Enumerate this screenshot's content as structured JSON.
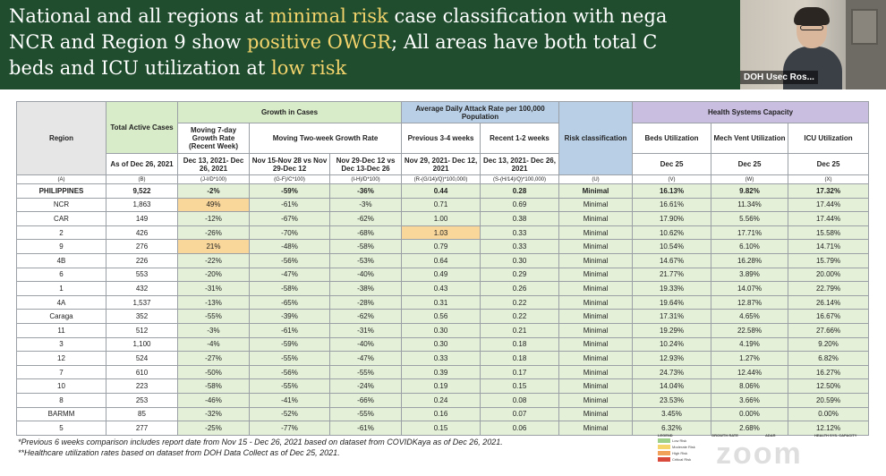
{
  "slide": {
    "title_lines": [
      [
        {
          "t": "National and all regions at ",
          "hl": false
        },
        {
          "t": "minimal risk",
          "hl": true
        },
        {
          "t": " case classification with nega",
          "hl": false
        }
      ],
      [
        {
          "t": "NCR and Region 9 show ",
          "hl": false
        },
        {
          "t": "positive OWGR",
          "hl": true
        },
        {
          "t": "; All areas have both total C",
          "hl": false
        }
      ],
      [
        {
          "t": "beds and ICU utilization at ",
          "hl": false
        },
        {
          "t": "low risk",
          "hl": true
        }
      ]
    ],
    "highlight_color": "#f3d36b",
    "background_color": "#1f4d2e"
  },
  "video": {
    "participant_name": "DOH Usec Ros..."
  },
  "table": {
    "headers": {
      "region": "Region",
      "total_active": "Total Active Cases",
      "growth_in_cases": "Growth in Cases",
      "adar": "Average Daily Attack Rate per 100,000 Population",
      "risk": "Risk classification",
      "hsc": "Health Systems Capacity",
      "moving7": "Moving 7-day Growth Rate (Recent Week)",
      "moving2wk": "Moving Two-week Growth Rate",
      "previous": "Previous 3-4 weeks",
      "recent": "Recent 1-2 weeks",
      "beds": "Beds Utilization",
      "mech": "Mech Vent Utilization",
      "icu": "ICU Utilization",
      "asof": "As of Dec 26, 2021",
      "d7": "Dec 13, 2021- Dec 26, 2021",
      "nov15": "Nov 15-Nov 28 vs Nov 29-Dec 12",
      "nov29": "Nov 29-Dec 12 vs Dec 13-Dec 26",
      "prev_dates": "Nov 29, 2021- Dec 12, 2021",
      "rec_dates": "Dec 13, 2021- Dec 26, 2021",
      "dec25a": "Dec 25",
      "dec25b": "Dec 25",
      "dec25c": "Dec 25"
    },
    "letters": [
      "(A)",
      "(B)",
      "(J-I/D*100)",
      "(G-F)/C*100)",
      "(I-H)/D*100)",
      "(R-(G/14)/Q)*100,000)",
      "(S-(H/14)/Q)*100,000)",
      "(U)",
      "(V)",
      "(W)",
      "(X)"
    ],
    "rows": [
      {
        "region": "PHILIPPINES",
        "active": "9,522",
        "g7": "-2%",
        "g2a": "-59%",
        "g2b": "-36%",
        "prev": "0.44",
        "rec": "0.28",
        "risk": "Minimal",
        "beds": "16.13%",
        "mech": "9.82%",
        "icu": "17.32%",
        "bold": true
      },
      {
        "region": "NCR",
        "active": "1,863",
        "g7": "49%",
        "g2a": "-61%",
        "g2b": "-3%",
        "prev": "0.71",
        "rec": "0.69",
        "risk": "Minimal",
        "beds": "16.61%",
        "mech": "11.34%",
        "icu": "17.44%",
        "g7_flag": true
      },
      {
        "region": "CAR",
        "active": "149",
        "g7": "-12%",
        "g2a": "-67%",
        "g2b": "-62%",
        "prev": "1.00",
        "rec": "0.38",
        "risk": "Minimal",
        "beds": "17.90%",
        "mech": "5.56%",
        "icu": "17.44%"
      },
      {
        "region": "2",
        "active": "426",
        "g7": "-26%",
        "g2a": "-70%",
        "g2b": "-68%",
        "prev": "1.03",
        "rec": "0.33",
        "risk": "Minimal",
        "beds": "10.62%",
        "mech": "17.71%",
        "icu": "15.58%",
        "prev_flag": true
      },
      {
        "region": "9",
        "active": "276",
        "g7": "21%",
        "g2a": "-48%",
        "g2b": "-58%",
        "prev": "0.79",
        "rec": "0.33",
        "risk": "Minimal",
        "beds": "10.54%",
        "mech": "6.10%",
        "icu": "14.71%",
        "g7_flag": true
      },
      {
        "region": "4B",
        "active": "226",
        "g7": "-22%",
        "g2a": "-56%",
        "g2b": "-53%",
        "prev": "0.64",
        "rec": "0.30",
        "risk": "Minimal",
        "beds": "14.67%",
        "mech": "16.28%",
        "icu": "15.79%"
      },
      {
        "region": "6",
        "active": "553",
        "g7": "-20%",
        "g2a": "-47%",
        "g2b": "-40%",
        "prev": "0.49",
        "rec": "0.29",
        "risk": "Minimal",
        "beds": "21.77%",
        "mech": "3.89%",
        "icu": "20.00%"
      },
      {
        "region": "1",
        "active": "432",
        "g7": "-31%",
        "g2a": "-58%",
        "g2b": "-38%",
        "prev": "0.43",
        "rec": "0.26",
        "risk": "Minimal",
        "beds": "19.33%",
        "mech": "14.07%",
        "icu": "22.79%"
      },
      {
        "region": "4A",
        "active": "1,537",
        "g7": "-13%",
        "g2a": "-65%",
        "g2b": "-28%",
        "prev": "0.31",
        "rec": "0.22",
        "risk": "Minimal",
        "beds": "19.64%",
        "mech": "12.87%",
        "icu": "26.14%"
      },
      {
        "region": "Caraga",
        "active": "352",
        "g7": "-55%",
        "g2a": "-39%",
        "g2b": "-62%",
        "prev": "0.56",
        "rec": "0.22",
        "risk": "Minimal",
        "beds": "17.31%",
        "mech": "4.65%",
        "icu": "16.67%"
      },
      {
        "region": "11",
        "active": "512",
        "g7": "-3%",
        "g2a": "-61%",
        "g2b": "-31%",
        "prev": "0.30",
        "rec": "0.21",
        "risk": "Minimal",
        "beds": "19.29%",
        "mech": "22.58%",
        "icu": "27.66%"
      },
      {
        "region": "3",
        "active": "1,100",
        "g7": "-4%",
        "g2a": "-59%",
        "g2b": "-40%",
        "prev": "0.30",
        "rec": "0.18",
        "risk": "Minimal",
        "beds": "10.24%",
        "mech": "4.19%",
        "icu": "9.20%"
      },
      {
        "region": "12",
        "active": "524",
        "g7": "-27%",
        "g2a": "-55%",
        "g2b": "-47%",
        "prev": "0.33",
        "rec": "0.18",
        "risk": "Minimal",
        "beds": "12.93%",
        "mech": "1.27%",
        "icu": "6.82%"
      },
      {
        "region": "7",
        "active": "610",
        "g7": "-50%",
        "g2a": "-56%",
        "g2b": "-55%",
        "prev": "0.39",
        "rec": "0.17",
        "risk": "Minimal",
        "beds": "24.73%",
        "mech": "12.44%",
        "icu": "16.27%"
      },
      {
        "region": "10",
        "active": "223",
        "g7": "-58%",
        "g2a": "-55%",
        "g2b": "-24%",
        "prev": "0.19",
        "rec": "0.15",
        "risk": "Minimal",
        "beds": "14.04%",
        "mech": "8.06%",
        "icu": "12.50%"
      },
      {
        "region": "8",
        "active": "253",
        "g7": "-46%",
        "g2a": "-41%",
        "g2b": "-66%",
        "prev": "0.24",
        "rec": "0.08",
        "risk": "Minimal",
        "beds": "23.53%",
        "mech": "3.66%",
        "icu": "20.59%"
      },
      {
        "region": "BARMM",
        "active": "85",
        "g7": "-32%",
        "g2a": "-52%",
        "g2b": "-55%",
        "prev": "0.16",
        "rec": "0.07",
        "risk": "Minimal",
        "beds": "3.45%",
        "mech": "0.00%",
        "icu": "0.00%"
      },
      {
        "region": "5",
        "active": "277",
        "g7": "-25%",
        "g2a": "-77%",
        "g2b": "-61%",
        "prev": "0.15",
        "rec": "0.06",
        "risk": "Minimal",
        "beds": "6.32%",
        "mech": "2.68%",
        "icu": "12.12%"
      }
    ]
  },
  "footnotes": {
    "line1": "*Previous 6 weeks comparison includes report date from Nov 15 - Dec 26, 2021 based on dataset from COVIDKaya as of Dec 26, 2021.",
    "line2": "**Healthcare utilization rates based on dataset from DOH Data Collect as of Dec 25, 2021."
  },
  "legend": {
    "col1_head": "LEGEND",
    "col1": [
      "Low Risk",
      "Moderate Risk",
      "High Risk",
      "Critical Risk"
    ],
    "col2_head": "GROWTH RATE",
    "col3_head": "ADAR",
    "col4_head": "HEALTH SYS. CAPACITY",
    "colors": [
      "#9ed08a",
      "#f6d66b",
      "#f2a15a",
      "#d94a3c"
    ],
    "watermark": "zoom"
  }
}
